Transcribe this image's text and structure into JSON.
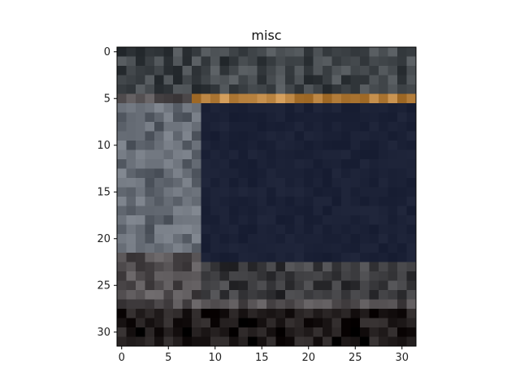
{
  "chart_data": {
    "type": "heatmap",
    "title": "misc",
    "xlabel": "",
    "ylabel": "",
    "grid_size": [
      32,
      32
    ],
    "xlim": [
      -0.5,
      31.5
    ],
    "ylim": [
      31.5,
      -0.5
    ],
    "x_ticks": [
      0,
      5,
      10,
      15,
      20,
      25,
      30
    ],
    "y_ticks": [
      0,
      5,
      10,
      15,
      20,
      25,
      30
    ],
    "description_regions": [
      {
        "name": "dark-panel",
        "rows": [
          6,
          22
        ],
        "cols": [
          9,
          31
        ],
        "color": "#1b2136"
      },
      {
        "name": "orange-band",
        "rows": [
          5,
          5
        ],
        "cols": [
          8,
          31
        ],
        "color": "#b8823f"
      },
      {
        "name": "left-column-texture",
        "rows": [
          6,
          21
        ],
        "cols": [
          0,
          8
        ],
        "color": "#646a73"
      },
      {
        "name": "top-texture",
        "rows": [
          0,
          4
        ],
        "cols": [
          0,
          31
        ],
        "color": "#3f4448"
      },
      {
        "name": "lower-band",
        "rows": [
          23,
          26
        ],
        "cols": [
          9,
          31
        ],
        "color": "#3a3a3d"
      },
      {
        "name": "bottom-strip",
        "rows": [
          28,
          31
        ],
        "cols": [
          0,
          31
        ],
        "color": "#1c1717"
      }
    ]
  },
  "colors": {
    "axis": "#000000",
    "background": "#ffffff"
  }
}
